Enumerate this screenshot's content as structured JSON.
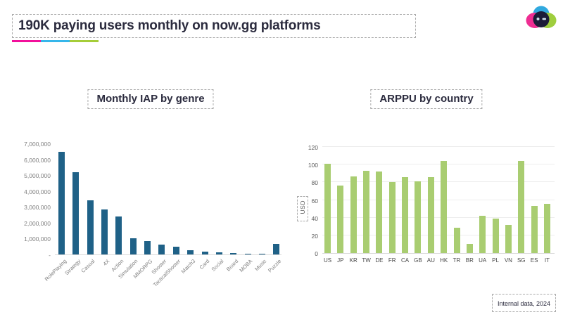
{
  "slide": {
    "title": "190K paying users monthly on now.gg platforms",
    "footer": "Internal data, 2024",
    "accent_colors": {
      "pink": "#f2109b",
      "blue": "#36b6ea",
      "green": "#a5cd39"
    }
  },
  "logo": {
    "name": "now.gg logo",
    "colors": {
      "pink": "#ee2d92",
      "blue": "#30a9df",
      "green": "#9fce3e",
      "face": "#1c1c38",
      "eyes": "#cfe0ea"
    }
  },
  "chart_data": [
    {
      "type": "bar",
      "title": "Monthly IAP by genre",
      "xlabel": "",
      "ylabel": "",
      "ylim": [
        0,
        7000000
      ],
      "grid": false,
      "bar_color": "#1f6187",
      "categories": [
        "RolePlaying",
        "Strategy",
        "Casual",
        "4X",
        "Action",
        "Simulation",
        "MMORPG",
        "Shooter",
        "TacticalShooter",
        "Match3",
        "Card",
        "Social",
        "Board",
        "MOBA",
        "Music",
        "Puzzle"
      ],
      "values": [
        6450000,
        5200000,
        3400000,
        2850000,
        2400000,
        1000000,
        850000,
        600000,
        480000,
        270000,
        180000,
        130000,
        90000,
        60000,
        30000,
        650000
      ],
      "yticks": [
        {
          "v": 0,
          "label": "-"
        },
        {
          "v": 1000000,
          "label": "1,000,000"
        },
        {
          "v": 2000000,
          "label": "2,000,000"
        },
        {
          "v": 3000000,
          "label": "3,000,000"
        },
        {
          "v": 4000000,
          "label": "4,000,000"
        },
        {
          "v": 5000000,
          "label": "5,000,000"
        },
        {
          "v": 6000000,
          "label": "6,000,000"
        },
        {
          "v": 7000000,
          "label": "7,000,000"
        }
      ]
    },
    {
      "type": "bar",
      "title": "ARPPU by country",
      "xlabel": "",
      "ylabel": "USD",
      "ylim": [
        0,
        120
      ],
      "grid": true,
      "bar_color": "#a9cd71",
      "categories": [
        "US",
        "JP",
        "KR",
        "TW",
        "DE",
        "FR",
        "CA",
        "GB",
        "AU",
        "HK",
        "TR",
        "BR",
        "UA",
        "PL",
        "VN",
        "SG",
        "ES",
        "IT"
      ],
      "values": [
        101,
        76,
        87,
        93,
        92,
        80,
        86,
        81,
        86,
        104,
        29,
        10,
        42,
        39,
        32,
        104,
        53,
        56
      ],
      "yticks": [
        {
          "v": 0,
          "label": "0"
        },
        {
          "v": 20,
          "label": "20"
        },
        {
          "v": 40,
          "label": "40"
        },
        {
          "v": 60,
          "label": "60"
        },
        {
          "v": 80,
          "label": "80"
        },
        {
          "v": 100,
          "label": "100"
        },
        {
          "v": 120,
          "label": "120"
        }
      ]
    }
  ]
}
